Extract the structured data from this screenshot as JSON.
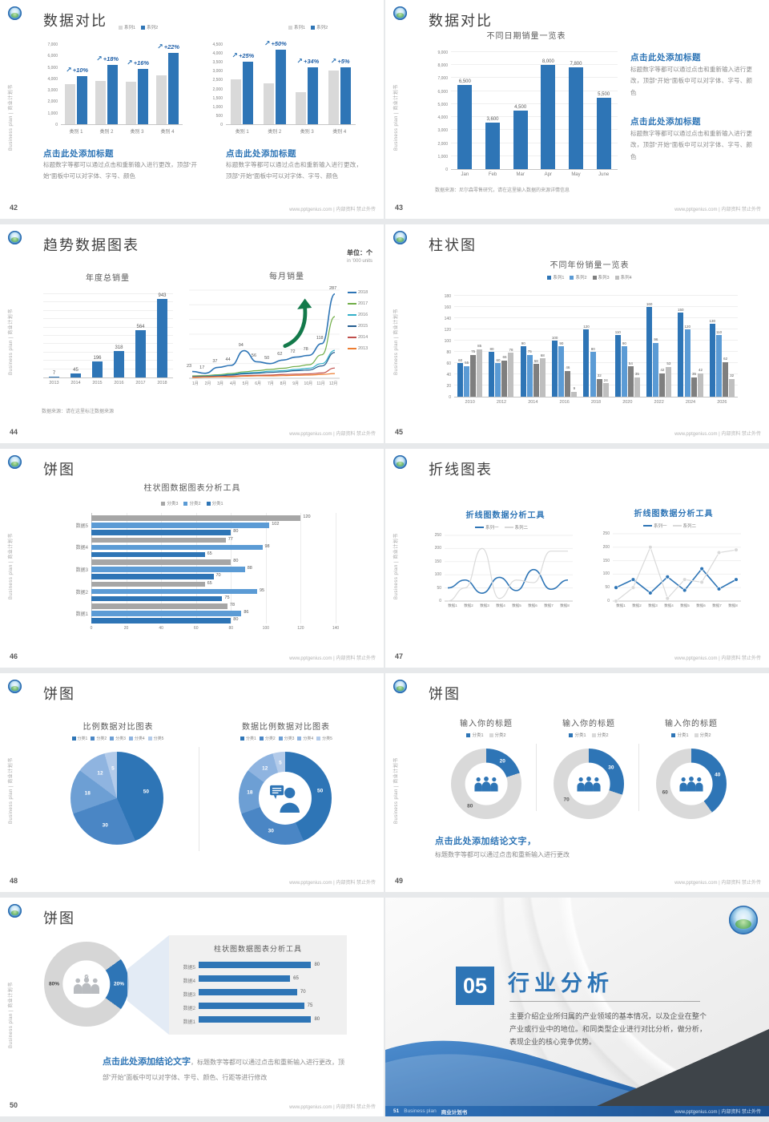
{
  "common": {
    "footer": "www.pptgenius.com | 内部资料 禁止外传",
    "vtext": "Business plan | 商业计划书",
    "accent": "#2e75b6"
  },
  "slides": {
    "s42": {
      "page": "42",
      "title": "数据对比",
      "blocks": [
        {
          "h": "点击此处添加标题",
          "b": "标题数字等都可以通过点击和重新输入进行更改，顶部“开始”面板中可以对字体、字号、颜色"
        },
        {
          "h": "点击此处添加标题",
          "b": "标题数字等都可以通过点击和重新输入进行更改，顶部“开始”面板中可以对字体、字号、颜色"
        }
      ]
    },
    "s43": {
      "page": "43",
      "title": "数据对比",
      "source": "数据来源：尼尔森零售研究，请在这里输入数据的来源详情信息",
      "blocks": [
        {
          "h": "点击此处添加标题",
          "b": "标题数字等都可以通过点击和重新输入进行更改，顶部“开始”面板中可以对字体、字号、颜色"
        },
        {
          "h": "点击此处添加标题",
          "b": "标题数字等都可以通过点击和重新输入进行更改，顶部“开始”面板中可以对字体、字号、颜色"
        }
      ]
    },
    "s44": {
      "page": "44",
      "title": "趋势数据图表",
      "unit1": "单位：个",
      "unit2": "in '000 units",
      "source": "数据来源：请在这里标注数据来源"
    },
    "s45": {
      "page": "45",
      "title": "柱状图"
    },
    "s46": {
      "page": "46",
      "title": "饼图"
    },
    "s47": {
      "page": "47",
      "title": "折线图表"
    },
    "s48": {
      "page": "48",
      "title": "饼图"
    },
    "s49": {
      "page": "49",
      "title": "饼图",
      "concl_h": "点击此处添加结论文字，",
      "concl_b": "标题数字等都可以通过点击和重新输入进行更改"
    },
    "s50": {
      "page": "50",
      "title": "饼图",
      "concl_h": "点击此处添加结论文字",
      "concl_b": "，标题数字等都可以通过点击和重新输入进行更改，顶部“开始”面板中可以对字体、字号、颜色、行距等进行修改"
    },
    "s51": {
      "page": "51",
      "num": "05",
      "title": "行业分析",
      "body": "主要介绍企业所归属的产业领域的基本情况，以及企业在整个产业或行业中的地位。和同类型企业进行对比分析，做分析，表现企业的核心竞争优势。",
      "brand1": "Business plan",
      "brand2": "商业计划书"
    }
  },
  "chart_data": [
    {
      "type": "column",
      "categories": [
        "类别 1",
        "类别 2",
        "类别 3",
        "类别 4"
      ],
      "ylim": [
        0,
        7000
      ],
      "ytick": 1000,
      "comma": true,
      "series": [
        {
          "name": "系列1",
          "color": "#d9d9d9",
          "values": [
            3500,
            3800,
            3700,
            4300
          ]
        },
        {
          "name": "系列2",
          "color": "#2e75b6",
          "values": [
            4200,
            5200,
            4800,
            6200
          ]
        }
      ],
      "annotations": [
        "+10%",
        "+18%",
        "+16%",
        "+22%"
      ],
      "legend": [
        {
          "label": "系列1",
          "color": "#d9d9d9"
        },
        {
          "label": "系列2",
          "color": "#2e75b6"
        }
      ]
    },
    {
      "type": "column",
      "categories": [
        "类别 1",
        "类别 2",
        "类别 3",
        "类别 4"
      ],
      "ylim": [
        0,
        4500
      ],
      "ytick": 500,
      "comma": true,
      "series": [
        {
          "name": "系列1",
          "color": "#d9d9d9",
          "values": [
            2500,
            2300,
            1800,
            3000
          ]
        },
        {
          "name": "系列2",
          "color": "#2e75b6",
          "values": [
            3500,
            4200,
            3200,
            3200
          ]
        }
      ],
      "annotations": [
        "+25%",
        "+50%",
        "+34%",
        "+5%"
      ],
      "legend": [
        {
          "label": "系列1",
          "color": "#d9d9d9"
        },
        {
          "label": "系列2",
          "color": "#2e75b6"
        }
      ]
    },
    {
      "type": "column",
      "title": "不同日期销量一览表",
      "categories": [
        "Jan",
        "Feb",
        "Mar",
        "Apr",
        "May",
        "June"
      ],
      "ylim": [
        0,
        9000
      ],
      "ytick": 1000,
      "comma": true,
      "grid": true,
      "series": [
        {
          "name": "销量",
          "color": "#2e75b6",
          "values": [
            6500,
            3600,
            4500,
            8000,
            7800,
            5500
          ],
          "labels": [
            "6,500",
            "3,600",
            "4,500",
            "8,000",
            "7,800",
            "5,500"
          ]
        }
      ]
    },
    {
      "type": "column",
      "title": "年度总销量",
      "categories": [
        "2013",
        "2014",
        "2015",
        "2016",
        "2017",
        "2018"
      ],
      "ylim": [
        0,
        1000
      ],
      "ytick": 100,
      "grid": true,
      "series": [
        {
          "name": "年度总销量",
          "color": "#2e75b6",
          "values": [
            7,
            45,
            196,
            318,
            564,
            943
          ],
          "labels": [
            "7",
            "45",
            "196",
            "318",
            "564",
            "943"
          ]
        }
      ]
    },
    {
      "type": "line",
      "title": "每月销量",
      "smooth": true,
      "x": [
        "1月",
        "2月",
        "3月",
        "4月",
        "5月",
        "6月",
        "7月",
        "8月",
        "9月",
        "10月",
        "11月",
        "12月"
      ],
      "ylim": [
        0,
        300
      ],
      "ytick": 50,
      "series": [
        {
          "name": "2018",
          "color": "#2e75b6",
          "values": [
            23,
            17,
            37,
            44,
            94,
            56,
            50,
            62,
            72,
            78,
            118,
            287
          ],
          "labels": [
            "23",
            "17",
            "37",
            "44",
            "94",
            "56",
            "50",
            "62",
            "72",
            "78",
            "118",
            "287"
          ]
        },
        {
          "name": "2017",
          "color": "#70ad47",
          "values": [
            8,
            9,
            12,
            16,
            22,
            26,
            30,
            34,
            40,
            46,
            80,
            210
          ]
        },
        {
          "name": "2016",
          "color": "#33b0c9",
          "values": [
            6,
            7,
            10,
            13,
            18,
            20,
            24,
            26,
            30,
            34,
            50,
            95
          ]
        },
        {
          "name": "2015",
          "color": "#255e91",
          "values": [
            5,
            6,
            8,
            11,
            15,
            17,
            20,
            22,
            26,
            28,
            42,
            88
          ]
        },
        {
          "name": "2014",
          "color": "#c0504d",
          "values": [
            4,
            5,
            6,
            7,
            9,
            10,
            11,
            13,
            14,
            15,
            18,
            35
          ]
        },
        {
          "name": "2013",
          "color": "#ed7d31",
          "values": [
            3,
            4,
            5,
            5,
            7,
            8,
            8,
            9,
            10,
            11,
            13,
            16
          ]
        }
      ],
      "legend": [
        {
          "label": "2018",
          "color": "#2e75b6"
        },
        {
          "label": "2017",
          "color": "#70ad47"
        },
        {
          "label": "2016",
          "color": "#33b0c9"
        },
        {
          "label": "2015",
          "color": "#255e91"
        },
        {
          "label": "2014",
          "color": "#c0504d"
        },
        {
          "label": "2013",
          "color": "#ed7d31"
        }
      ]
    },
    {
      "type": "column",
      "title": "不同年份销量一览表",
      "show_values": true,
      "categories": [
        "2010",
        "2012",
        "2014",
        "2016",
        "2018",
        "2020",
        "2022",
        "2024",
        "2026"
      ],
      "ylim": [
        0,
        180
      ],
      "ytick": 20,
      "grid": true,
      "series": [
        {
          "name": "系列1",
          "color": "#2e75b6",
          "values": [
            60,
            80,
            90,
            100,
            120,
            110,
            160,
            150,
            130
          ]
        },
        {
          "name": "系列2",
          "color": "#5b9bd5",
          "values": [
            55,
            60,
            75,
            90,
            80,
            90,
            96,
            120,
            110
          ]
        },
        {
          "name": "系列3",
          "color": "#7f7f7f",
          "values": [
            75,
            65,
            58,
            46,
            32,
            54,
            42,
            35,
            62
          ]
        },
        {
          "name": "系列4",
          "color": "#bfbfbf",
          "values": [
            85,
            78,
            68,
            9,
            24,
            35,
            53,
            42,
            32
          ]
        }
      ],
      "legend": [
        {
          "label": "系列1",
          "color": "#2e75b6"
        },
        {
          "label": "系列2",
          "color": "#5b9bd5"
        },
        {
          "label": "系列3",
          "color": "#7f7f7f"
        },
        {
          "label": "系列4",
          "color": "#bfbfbf"
        }
      ]
    },
    {
      "type": "hbar-group",
      "title": "柱状图数据图表分析工具",
      "categories_top_to_bottom": [
        "数据5",
        "数据4",
        "数据3",
        "数据2",
        "数据1"
      ],
      "xlim": [
        0,
        140
      ],
      "xtick": 20,
      "series": [
        {
          "name": "分类3",
          "color": "#a6a6a6",
          "values": [
            120,
            77,
            80,
            65,
            78
          ]
        },
        {
          "name": "分类2",
          "color": "#5b9bd5",
          "values": [
            102,
            98,
            88,
            95,
            86
          ]
        },
        {
          "name": "分类1",
          "color": "#2e75b6",
          "values": [
            80,
            65,
            70,
            75,
            80
          ]
        }
      ],
      "legend": [
        {
          "label": "分类3",
          "color": "#a6a6a6"
        },
        {
          "label": "分类2",
          "color": "#5b9bd5"
        },
        {
          "label": "分类1",
          "color": "#2e75b6"
        }
      ]
    },
    {
      "type": "line",
      "title": "折线图数据分析工具",
      "smooth": true,
      "x": [
        "数据1",
        "数据2",
        "数据3",
        "数据4",
        "数据5",
        "数据6",
        "数据7",
        "数据8"
      ],
      "ylim": [
        0,
        250
      ],
      "ytick": 50,
      "series": [
        {
          "name": "系列一",
          "color": "#2e75b6",
          "values": [
            50,
            80,
            30,
            90,
            40,
            120,
            45,
            80
          ]
        },
        {
          "name": "系列二",
          "color": "#d9d9d9",
          "values": [
            0,
            50,
            200,
            10,
            80,
            70,
            190,
            190
          ]
        }
      ],
      "legend": [
        {
          "label": "系列一",
          "color": "#2e75b6"
        },
        {
          "label": "系列二",
          "color": "#d9d9d9"
        }
      ]
    },
    {
      "type": "line",
      "title": "折线图数据分析工具",
      "markers": true,
      "x": [
        "数据1",
        "数据2",
        "数据3",
        "数据4",
        "数据5",
        "数据6",
        "数据7",
        "数据8"
      ],
      "ylim": [
        0,
        250
      ],
      "ytick": 50,
      "series": [
        {
          "name": "系列一",
          "color": "#2e75b6",
          "values": [
            50,
            80,
            30,
            90,
            40,
            120,
            45,
            80
          ]
        },
        {
          "name": "系列二",
          "color": "#d9d9d9",
          "values": [
            0,
            50,
            200,
            10,
            80,
            70,
            180,
            190
          ]
        }
      ],
      "legend": [
        {
          "label": "系列一",
          "color": "#2e75b6"
        },
        {
          "label": "系列二",
          "color": "#d9d9d9"
        }
      ]
    },
    {
      "type": "pie",
      "title": "比例数据对比图表",
      "values": [
        50,
        30,
        18,
        12,
        5
      ],
      "labels": [
        "50",
        "30",
        "18",
        "12",
        "5"
      ],
      "colors": [
        "#2e75b6",
        "#4a86c5",
        "#6d9fd4",
        "#8fb4e0",
        "#b3cbea"
      ],
      "legend": [
        {
          "label": "分类1",
          "color": "#2e75b6"
        },
        {
          "label": "分类2",
          "color": "#4a86c5"
        },
        {
          "label": "分类3",
          "color": "#6d9fd4"
        },
        {
          "label": "分类4",
          "color": "#8fb4e0"
        },
        {
          "label": "分类5",
          "color": "#b3cbea"
        }
      ]
    },
    {
      "type": "donut",
      "title": "数据比例数据对比图表",
      "values": [
        50,
        30,
        18,
        12,
        5
      ],
      "labels": [
        "50",
        "30",
        "18",
        "12",
        "5"
      ],
      "inner": 0.57,
      "colors": [
        "#2e75b6",
        "#4a86c5",
        "#6d9fd4",
        "#8fb4e0",
        "#b3cbea"
      ],
      "legend": [
        {
          "label": "分类1",
          "color": "#2e75b6"
        },
        {
          "label": "分类2",
          "color": "#4a86c5"
        },
        {
          "label": "分类3",
          "color": "#6d9fd4"
        },
        {
          "label": "分类4",
          "color": "#8fb4e0"
        },
        {
          "label": "分类5",
          "color": "#b3cbea"
        }
      ]
    },
    {
      "type": "donut",
      "title": "输入你的标题",
      "values": [
        20,
        80
      ],
      "labels": [
        "20",
        "80"
      ],
      "inner": 0.6,
      "colors": [
        "#2e75b6",
        "#d9d9d9"
      ],
      "label_colors": [
        "#ffffff",
        "#595959"
      ],
      "legend": [
        {
          "label": "分类1",
          "color": "#2e75b6"
        },
        {
          "label": "分类2",
          "color": "#d9d9d9"
        }
      ]
    },
    {
      "type": "donut",
      "title": "输入你的标题",
      "values": [
        30,
        70
      ],
      "labels": [
        "30",
        "70"
      ],
      "inner": 0.6,
      "colors": [
        "#2e75b6",
        "#d9d9d9"
      ],
      "label_colors": [
        "#ffffff",
        "#595959"
      ],
      "legend": [
        {
          "label": "分类1",
          "color": "#2e75b6"
        },
        {
          "label": "分类2",
          "color": "#d9d9d9"
        }
      ]
    },
    {
      "type": "donut",
      "title": "输入你的标题",
      "values": [
        40,
        60
      ],
      "labels": [
        "40",
        "60"
      ],
      "inner": 0.6,
      "colors": [
        "#2e75b6",
        "#d9d9d9"
      ],
      "label_colors": [
        "#ffffff",
        "#595959"
      ],
      "legend": [
        {
          "label": "分类1",
          "color": "#2e75b6"
        },
        {
          "label": "分类2",
          "color": "#d9d9d9"
        }
      ]
    },
    {
      "type": "donut",
      "values": [
        20,
        80
      ],
      "labels": [
        "20%",
        "80%"
      ],
      "inner": 0.56,
      "start": 54,
      "colors": [
        "#2e75b6",
        "#d6d6d6"
      ],
      "label_colors": [
        "#ffffff",
        "#404040"
      ]
    },
    {
      "type": "hbar",
      "title": "柱状图数据图表分析工具",
      "xlim": [
        0,
        90
      ],
      "categories_top_to_bottom": [
        "数据5",
        "数据4",
        "数据3",
        "数据2",
        "数据1"
      ],
      "values": [
        80,
        65,
        70,
        75,
        80
      ],
      "labels": [
        "80",
        "65",
        "70",
        "75",
        "80"
      ],
      "color": "#2e75b6"
    }
  ]
}
